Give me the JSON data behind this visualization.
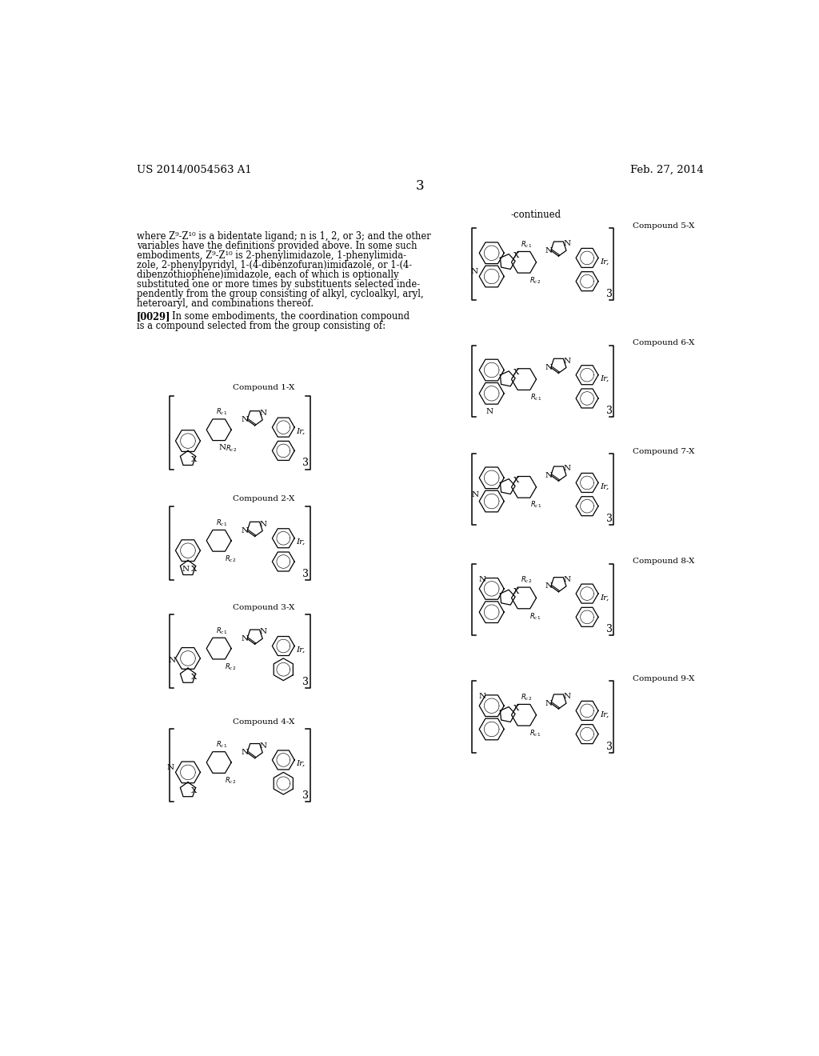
{
  "page_number": "3",
  "patent_number": "US 2014/0054563 A1",
  "patent_date": "Feb. 27, 2014",
  "continued_label": "-continued",
  "background_color": "#ffffff",
  "text_color": "#000000",
  "body_lines": [
    "where Z⁹-Z¹⁰ is a bidentate ligand; n is 1, 2, or 3; and the other",
    "variables have the definitions provided above. In some such",
    "embodiments, Z⁹-Z¹⁰ is 2-phenylimidazole, 1-phenylimida-",
    "zole, 2-phenylpyridyl, 1-(4-dibenzofuran)imidazole, or 1-(4-",
    "dibenzothiophene)imidazole, each of which is optionally",
    "substituted one or more times by substituents selected inde-",
    "pendently from the group consisting of alkyl, cycloalkyl, aryl,",
    "heteroaryl, and combinations thereof."
  ],
  "para_label": "[0029]",
  "para_text1": "In some embodiments, the coordination compound",
  "para_text2": "is a compound selected from the group consisting of:",
  "compound_labels": [
    "Compound 1-X",
    "Compound 2-X",
    "Compound 3-X",
    "Compound 4-X",
    "Compound 5-X",
    "Compound 6-X",
    "Compound 7-X",
    "Compound 8-X",
    "Compound 9-X"
  ]
}
